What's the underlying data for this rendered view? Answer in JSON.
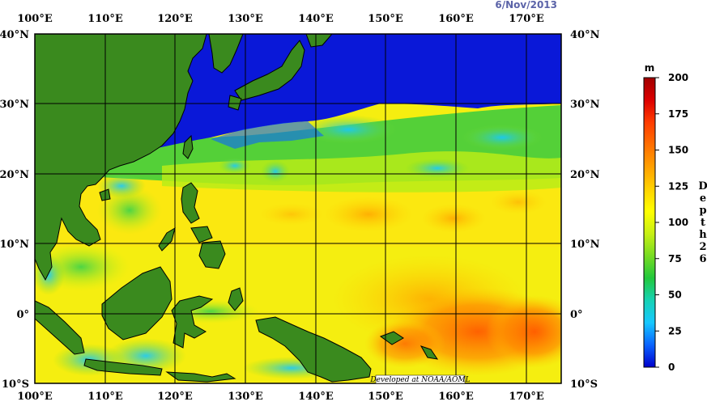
{
  "date": "6/Nov/2013",
  "map": {
    "lon_range": [
      100,
      175
    ],
    "lat_range": [
      -10,
      40
    ],
    "lon_ticks": [
      "100°E",
      "110°E",
      "120°E",
      "130°E",
      "140°E",
      "150°E",
      "160°E",
      "170°E"
    ],
    "lat_ticks": [
      "40°N",
      "30°N",
      "20°N",
      "10°N",
      "0°",
      "10°S"
    ],
    "grid": true,
    "land_color": "#3a8a1e",
    "coast_color": "#000000"
  },
  "colorbar": {
    "unit": "m",
    "ticks": [
      "0",
      "25",
      "50",
      "75",
      "100",
      "125",
      "150",
      "175",
      "200"
    ],
    "range": [
      0,
      200
    ],
    "title_chars": [
      "D",
      "e",
      "p",
      "t",
      "h",
      "2",
      "6"
    ],
    "colors": [
      "#0000cc",
      "#0a64ff",
      "#16c8ff",
      "#16d2b4",
      "#22c83c",
      "#78dc22",
      "#c8f014",
      "#ffff00",
      "#ffd200",
      "#ffa000",
      "#ff6e00",
      "#ff3c00",
      "#dc0000",
      "#a00000"
    ]
  },
  "credit": "Developed at NOAA/AOML"
}
